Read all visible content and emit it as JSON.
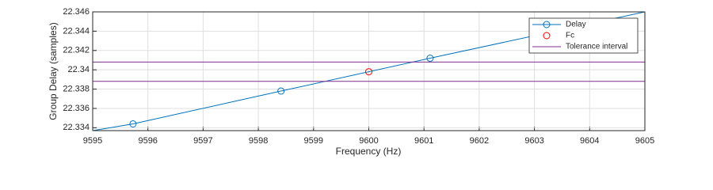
{
  "chart_data": {
    "type": "line",
    "xlabel": "Frequency (Hz)",
    "ylabel": "Group Delay (samples)",
    "xlim": [
      9595,
      9605
    ],
    "xticks": [
      9595,
      9596,
      9597,
      9598,
      9599,
      9600,
      9601,
      9602,
      9603,
      9604,
      9605
    ],
    "ylim": [
      22.3337,
      22.346
    ],
    "yticks": [
      22.334,
      22.336,
      22.338,
      22.34,
      22.342,
      22.344,
      22.346
    ],
    "grid": true,
    "legend": "northeast",
    "series": [
      {
        "name": "Delay",
        "color": "#0072bd",
        "marker": "circle",
        "marker_indices": [
          1,
          2,
          3,
          4
        ],
        "x": [
          9595,
          9595.73,
          9598.41,
          9601.11,
          9605
        ],
        "values": [
          22.3337,
          22.3344,
          22.3378,
          22.3412,
          22.346
        ]
      },
      {
        "name": "Fc",
        "color": "#ff0000",
        "marker": "circle",
        "x": [
          9600
        ],
        "values": [
          22.3398
        ]
      },
      {
        "name": "Tolerance interval",
        "color": "#7e2f8e",
        "type": "hline",
        "values": [
          22.3388,
          22.3408
        ]
      }
    ]
  }
}
